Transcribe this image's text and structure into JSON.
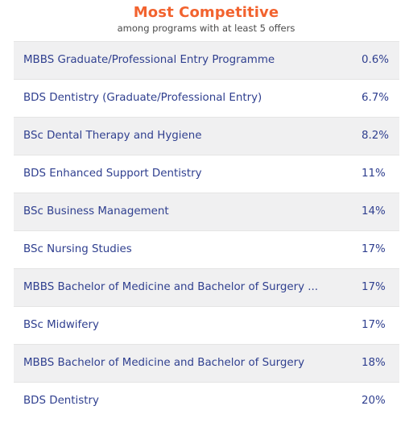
{
  "header": {
    "title": "Most Competitive",
    "subtitle": "among programs with at least 5 offers"
  },
  "rows": [
    {
      "name": "MBBS Graduate/Professional Entry Programme",
      "value": "0.6%"
    },
    {
      "name": "BDS Dentistry (Graduate/Professional Entry)",
      "value": "6.7%"
    },
    {
      "name": "BSc Dental Therapy and Hygiene",
      "value": "8.2%"
    },
    {
      "name": "BDS Enhanced Support Dentistry",
      "value": "11%"
    },
    {
      "name": "BSc Business Management",
      "value": "14%"
    },
    {
      "name": "BSc Nursing Studies",
      "value": "17%"
    },
    {
      "name": "MBBS Bachelor of Medicine and Bachelor of Surgery ...",
      "value": "17%"
    },
    {
      "name": "BSc Midwifery",
      "value": "17%"
    },
    {
      "name": "MBBS Bachelor of Medicine and Bachelor of Surgery",
      "value": "18%"
    },
    {
      "name": "BDS Dentistry",
      "value": "20%"
    }
  ],
  "colors": {
    "title": "#f2632f",
    "row_text": "#2f3f8f",
    "stripe": "#f0f0f1"
  }
}
